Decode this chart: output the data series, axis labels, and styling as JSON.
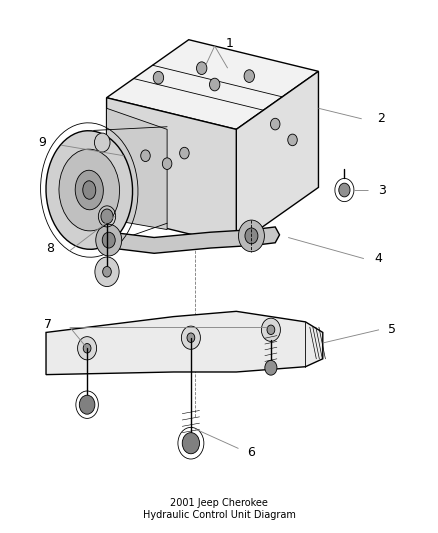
{
  "bg_color": "#ffffff",
  "line_color": "#000000",
  "leader_color": "#888888",
  "label_color": "#000000",
  "label_fontsize": 9,
  "lw_main": 1.0,
  "lw_thin": 0.6,
  "figsize": [
    4.38,
    5.33
  ],
  "dpi": 100,
  "title": "2001 Jeep Cherokee\nHydraulic Control Unit Diagram"
}
